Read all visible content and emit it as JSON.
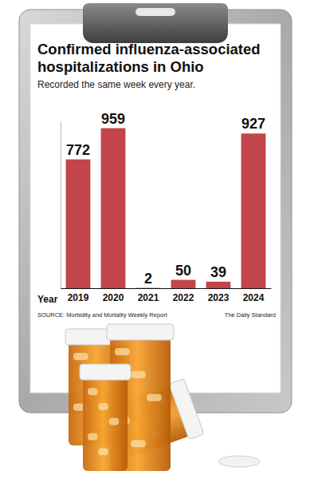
{
  "chart_data": {
    "type": "bar",
    "title": "Confirmed influenza-associated hospitalizations in Ohio",
    "subtitle": "Recorded the same week every year.",
    "xlabel": "Year",
    "categories": [
      "2019",
      "2020",
      "2021",
      "2022",
      "2023",
      "2024"
    ],
    "values": [
      772,
      959,
      2,
      50,
      39,
      927
    ],
    "color": "#c1454b",
    "ylim": [
      0,
      1000
    ],
    "data_labels": true,
    "tick_labels": "x",
    "source": "SOURCE: Morbidity and Mortality Weekly Report",
    "credit": "The Daily Standard"
  }
}
